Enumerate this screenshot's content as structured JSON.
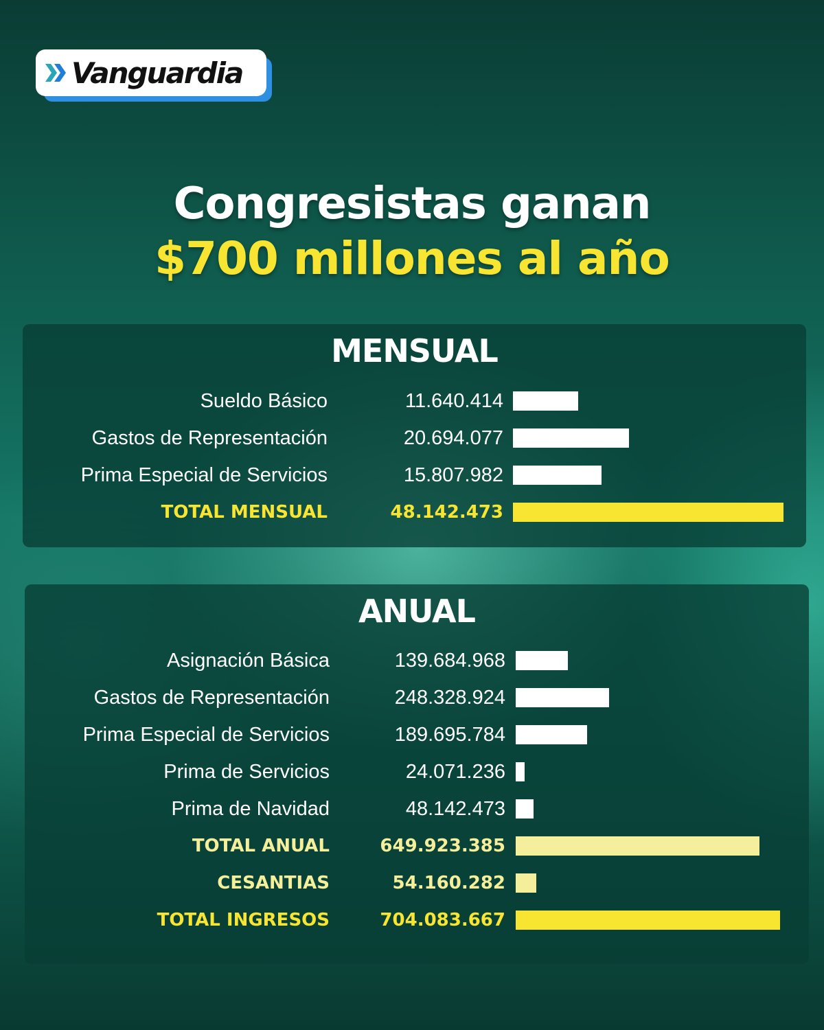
{
  "brand": {
    "name": "Vanguardia",
    "mark_icon": "double-chevron-icon",
    "accent_color": "#2f8fe0"
  },
  "headline": {
    "line1": "Congresistas ganan",
    "line2": "$700 millones al año"
  },
  "colors": {
    "highlight": "#f7e532",
    "highlight_soft": "#f5ee9a",
    "bar": "#ffffff"
  },
  "chart_data": [
    {
      "type": "bar",
      "orientation": "horizontal",
      "title": "MENSUAL",
      "categories": [
        "Sueldo Básico",
        "Gastos de Representación",
        "Prima Especial de Servicios",
        "TOTAL MENSUAL"
      ],
      "value_labels": [
        "11.640.414",
        "20.694.077",
        "15.807.982",
        "48.142.473"
      ],
      "values": [
        11640414,
        20694077,
        15807982,
        48142473
      ],
      "highlight": [
        "none",
        "none",
        "none",
        "total"
      ]
    },
    {
      "type": "bar",
      "orientation": "horizontal",
      "title": "ANUAL",
      "categories": [
        "Asignación Básica",
        "Gastos de Representación",
        "Prima Especial de Servicios",
        "Prima de Servicios",
        "Prima de Navidad",
        "TOTAL ANUAL",
        "CESANTIAS",
        "TOTAL INGRESOS"
      ],
      "value_labels": [
        "139.684.968",
        "248.328.924",
        "189.695.784",
        "24.071.236",
        "48.142.473",
        "649.923.385",
        "54.160.282",
        "704.083.667"
      ],
      "values": [
        139684968,
        248328924,
        189695784,
        24071236,
        48142473,
        649923385,
        54160282,
        704083667
      ],
      "highlight": [
        "none",
        "none",
        "none",
        "none",
        "none",
        "soft",
        "soft",
        "total"
      ]
    }
  ]
}
